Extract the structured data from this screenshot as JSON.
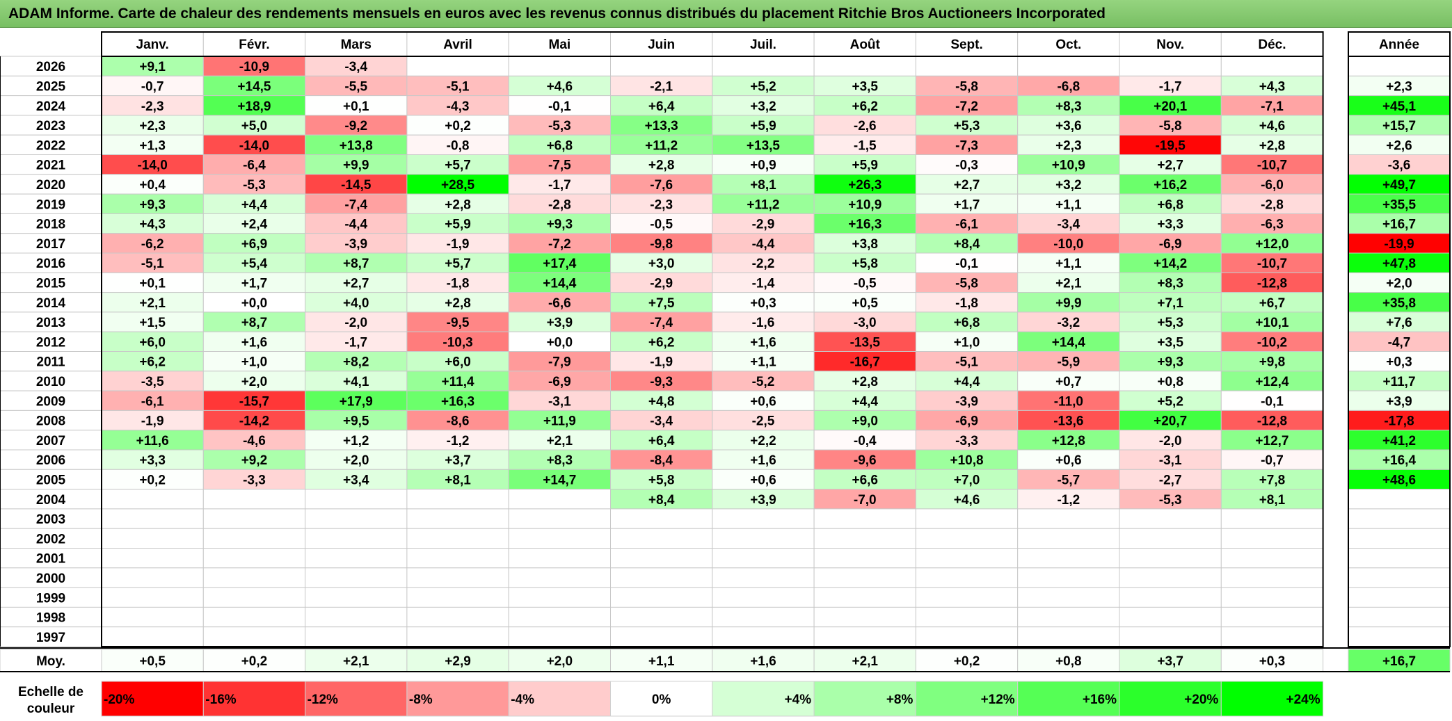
{
  "title": "ADAM Informe. Carte de chaleur des rendements mensuels en euros avec les revenus connus distribués du placement Ritchie Bros Auctioneers Incorporated",
  "chart_data": {
    "type": "heatmap",
    "title": "ADAM Informe. Carte de chaleur des rendements mensuels en euros avec les revenus connus distribués du placement Ritchie Bros Auctioneers Incorporated",
    "months": [
      "Janv.",
      "Févr.",
      "Mars",
      "Avril",
      "Mai",
      "Juin",
      "Juil.",
      "Août",
      "Sept.",
      "Oct.",
      "Nov.",
      "Déc."
    ],
    "year_header": "Année",
    "avg_label": "Moy.",
    "rows": [
      {
        "year": "2026",
        "values": [
          "+9,1",
          "-10,9",
          "-3,4",
          null,
          null,
          null,
          null,
          null,
          null,
          null,
          null,
          null
        ],
        "annual": null
      },
      {
        "year": "2025",
        "values": [
          "-0,7",
          "+14,5",
          "-5,5",
          "-5,1",
          "+4,6",
          "-2,1",
          "+5,2",
          "+3,5",
          "-5,8",
          "-6,8",
          "-1,7",
          "+4,3"
        ],
        "annual": "+2,3"
      },
      {
        "year": "2024",
        "values": [
          "-2,3",
          "+18,9",
          "+0,1",
          "-4,3",
          "-0,1",
          "+6,4",
          "+3,2",
          "+6,2",
          "-7,2",
          "+8,3",
          "+20,1",
          "-7,1"
        ],
        "annual": "+45,1"
      },
      {
        "year": "2023",
        "values": [
          "+2,3",
          "+5,0",
          "-9,2",
          "+0,2",
          "-5,3",
          "+13,3",
          "+5,9",
          "-2,6",
          "+5,3",
          "+3,6",
          "-5,8",
          "+4,6"
        ],
        "annual": "+15,7"
      },
      {
        "year": "2022",
        "values": [
          "+1,3",
          "-14,0",
          "+13,8",
          "-0,8",
          "+6,8",
          "+11,2",
          "+13,5",
          "-1,5",
          "-7,3",
          "+2,3",
          "-19,5",
          "+2,8"
        ],
        "annual": "+2,6"
      },
      {
        "year": "2021",
        "values": [
          "-14,0",
          "-6,4",
          "+9,9",
          "+5,7",
          "-7,5",
          "+2,8",
          "+0,9",
          "+5,9",
          "-0,3",
          "+10,9",
          "+2,7",
          "-10,7"
        ],
        "annual": "-3,6"
      },
      {
        "year": "2020",
        "values": [
          "+0,4",
          "-5,3",
          "-14,5",
          "+28,5",
          "-1,7",
          "-7,6",
          "+8,1",
          "+26,3",
          "+2,7",
          "+3,2",
          "+16,2",
          "-6,0"
        ],
        "annual": "+49,7"
      },
      {
        "year": "2019",
        "values": [
          "+9,3",
          "+4,4",
          "-7,4",
          "+2,8",
          "-2,8",
          "-2,3",
          "+11,2",
          "+10,9",
          "+1,7",
          "+1,1",
          "+6,8",
          "-2,8"
        ],
        "annual": "+35,5"
      },
      {
        "year": "2018",
        "values": [
          "+4,3",
          "+2,4",
          "-4,4",
          "+5,9",
          "+9,3",
          "-0,5",
          "-2,9",
          "+16,3",
          "-6,1",
          "-3,4",
          "+3,3",
          "-6,3"
        ],
        "annual": "+16,7"
      },
      {
        "year": "2017",
        "values": [
          "-6,2",
          "+6,9",
          "-3,9",
          "-1,9",
          "-7,2",
          "-9,8",
          "-4,4",
          "+3,8",
          "+8,4",
          "-10,0",
          "-6,9",
          "+12,0"
        ],
        "annual": "-19,9"
      },
      {
        "year": "2016",
        "values": [
          "-5,1",
          "+5,4",
          "+8,7",
          "+5,7",
          "+17,4",
          "+3,0",
          "-2,2",
          "+5,8",
          "-0,1",
          "+1,1",
          "+14,2",
          "-10,7"
        ],
        "annual": "+47,8"
      },
      {
        "year": "2015",
        "values": [
          "+0,1",
          "+1,7",
          "+2,7",
          "-1,8",
          "+14,4",
          "-2,9",
          "-1,4",
          "-0,5",
          "-5,8",
          "+2,1",
          "+8,3",
          "-12,8"
        ],
        "annual": "+2,0"
      },
      {
        "year": "2014",
        "values": [
          "+2,1",
          "+0,0",
          "+4,0",
          "+2,8",
          "-6,6",
          "+7,5",
          "+0,3",
          "+0,5",
          "-1,8",
          "+9,9",
          "+7,1",
          "+6,7"
        ],
        "annual": "+35,8"
      },
      {
        "year": "2013",
        "values": [
          "+1,5",
          "+8,7",
          "-2,0",
          "-9,5",
          "+3,9",
          "-7,4",
          "-1,6",
          "-3,0",
          "+6,8",
          "-3,2",
          "+5,3",
          "+10,1"
        ],
        "annual": "+7,6"
      },
      {
        "year": "2012",
        "values": [
          "+6,0",
          "+1,6",
          "-1,7",
          "-10,3",
          "+0,0",
          "+6,2",
          "+1,6",
          "-13,5",
          "+1,0",
          "+14,4",
          "+3,5",
          "-10,2"
        ],
        "annual": "-4,7"
      },
      {
        "year": "2011",
        "values": [
          "+6,2",
          "+1,0",
          "+8,2",
          "+6,0",
          "-7,9",
          "-1,9",
          "+1,1",
          "-16,7",
          "-5,1",
          "-5,9",
          "+9,3",
          "+9,8"
        ],
        "annual": "+0,3"
      },
      {
        "year": "2010",
        "values": [
          "-3,5",
          "+2,0",
          "+4,1",
          "+11,4",
          "-6,9",
          "-9,3",
          "-5,2",
          "+2,8",
          "+4,4",
          "+0,7",
          "+0,8",
          "+12,4"
        ],
        "annual": "+11,7"
      },
      {
        "year": "2009",
        "values": [
          "-6,1",
          "-15,7",
          "+17,9",
          "+16,3",
          "-3,1",
          "+4,8",
          "+0,6",
          "+4,4",
          "-3,9",
          "-11,0",
          "+5,2",
          "-0,1"
        ],
        "annual": "+3,9"
      },
      {
        "year": "2008",
        "values": [
          "-1,9",
          "-14,2",
          "+9,5",
          "-8,6",
          "+11,9",
          "-3,4",
          "-2,5",
          "+9,0",
          "-6,9",
          "-13,6",
          "+20,7",
          "-12,8"
        ],
        "annual": "-17,8"
      },
      {
        "year": "2007",
        "values": [
          "+11,6",
          "-4,6",
          "+1,2",
          "-1,2",
          "+2,1",
          "+6,4",
          "+2,2",
          "-0,4",
          "-3,3",
          "+12,8",
          "-2,0",
          "+12,7"
        ],
        "annual": "+41,2"
      },
      {
        "year": "2006",
        "values": [
          "+3,3",
          "+9,2",
          "+2,0",
          "+3,7",
          "+8,3",
          "-8,4",
          "+1,6",
          "-9,6",
          "+10,8",
          "+0,6",
          "-3,1",
          "-0,7"
        ],
        "annual": "+16,4"
      },
      {
        "year": "2005",
        "values": [
          "+0,2",
          "-3,3",
          "+3,4",
          "+8,1",
          "+14,7",
          "+5,8",
          "+0,6",
          "+6,6",
          "+7,0",
          "-5,7",
          "-2,7",
          "+7,8"
        ],
        "annual": "+48,6"
      },
      {
        "year": "2004",
        "values": [
          null,
          null,
          null,
          null,
          null,
          "+8,4",
          "+3,9",
          "-7,0",
          "+4,6",
          "-1,2",
          "-5,3",
          "+8,1"
        ],
        "annual": null
      },
      {
        "year": "2003",
        "values": [
          null,
          null,
          null,
          null,
          null,
          null,
          null,
          null,
          null,
          null,
          null,
          null
        ],
        "annual": null
      },
      {
        "year": "2002",
        "values": [
          null,
          null,
          null,
          null,
          null,
          null,
          null,
          null,
          null,
          null,
          null,
          null
        ],
        "annual": null
      },
      {
        "year": "2001",
        "values": [
          null,
          null,
          null,
          null,
          null,
          null,
          null,
          null,
          null,
          null,
          null,
          null
        ],
        "annual": null
      },
      {
        "year": "2000",
        "values": [
          null,
          null,
          null,
          null,
          null,
          null,
          null,
          null,
          null,
          null,
          null,
          null
        ],
        "annual": null
      },
      {
        "year": "1999",
        "values": [
          null,
          null,
          null,
          null,
          null,
          null,
          null,
          null,
          null,
          null,
          null,
          null
        ],
        "annual": null
      },
      {
        "year": "1998",
        "values": [
          null,
          null,
          null,
          null,
          null,
          null,
          null,
          null,
          null,
          null,
          null,
          null
        ],
        "annual": null
      },
      {
        "year": "1997",
        "values": [
          null,
          null,
          null,
          null,
          null,
          null,
          null,
          null,
          null,
          null,
          null,
          null
        ],
        "annual": null
      }
    ],
    "averages": [
      "+0,5",
      "+0,2",
      "+2,1",
      "+2,9",
      "+2,0",
      "+1,1",
      "+1,6",
      "+2,1",
      "+0,2",
      "+0,8",
      "+3,7",
      "+0,3"
    ],
    "average_annual": "+16,7",
    "scale_label_line1": "Echelle de",
    "scale_label_line2": "couleur",
    "scale": [
      "-20%",
      "-16%",
      "-12%",
      "-8%",
      "-4%",
      "0%",
      "+4%",
      "+8%",
      "+12%",
      "+16%",
      "+20%",
      "+24%"
    ],
    "colors": {
      "negative": "#ff0000",
      "neutral": "#ffffff",
      "positive": "#00ff00",
      "title_bar": "#86c970"
    }
  }
}
